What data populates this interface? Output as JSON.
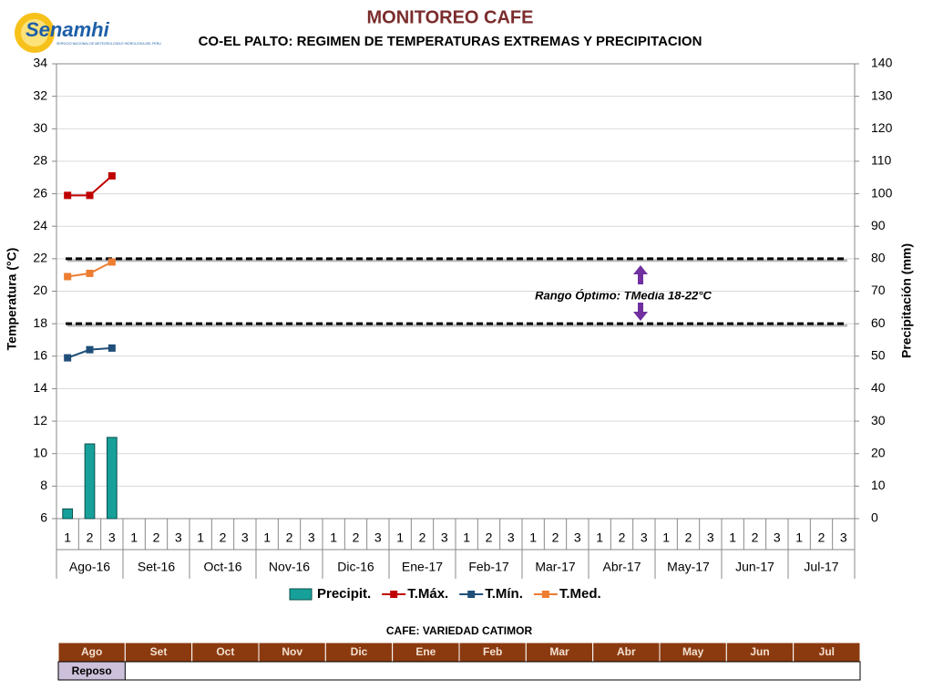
{
  "logo": {
    "name": "Senamhi",
    "tagline": "SERVICIO NACIONAL DE METEOROLOGIA E HIDROLOGIA DEL PERU"
  },
  "chart_data": {
    "type": "bar_line",
    "title": "MONITOREO CAFE",
    "subtitle": "CO-EL PALTO: REGIMEN DE TEMPERATURAS EXTREMAS Y PRECIPITACION",
    "ylabel": "Temperatura (°C)",
    "y2label": "Precipitación (mm)",
    "categories": [
      "1",
      "2",
      "3",
      "1",
      "2",
      "3",
      "1",
      "2",
      "3",
      "1",
      "2",
      "3",
      "1",
      "2",
      "3",
      "1",
      "2",
      "3",
      "1",
      "2",
      "3",
      "1",
      "2",
      "3",
      "1",
      "2",
      "3",
      "1",
      "2",
      "3",
      "1",
      "2",
      "3",
      "1",
      "2",
      "3"
    ],
    "groups": [
      "Ago-16",
      "Set-16",
      "Oct-16",
      "Nov-16",
      "Dic-16",
      "Ene-17",
      "Feb-17",
      "Mar-17",
      "Abr-17",
      "May-17",
      "Jun-17",
      "Jul-17"
    ],
    "series": [
      {
        "name": "Precipit.",
        "type": "bar",
        "axis": "y2",
        "color": "#17a09a",
        "values": [
          3,
          23,
          25,
          null,
          null,
          null,
          null,
          null,
          null,
          null,
          null,
          null,
          null,
          null,
          null,
          null,
          null,
          null,
          null,
          null,
          null,
          null,
          null,
          null,
          null,
          null,
          null,
          null,
          null,
          null,
          null,
          null,
          null,
          null,
          null,
          null
        ]
      },
      {
        "name": "T.Máx.",
        "type": "line",
        "color": "#c00000",
        "values": [
          25.9,
          25.9,
          27.1,
          null,
          null,
          null,
          null,
          null,
          null,
          null,
          null,
          null,
          null,
          null,
          null,
          null,
          null,
          null,
          null,
          null,
          null,
          null,
          null,
          null,
          null,
          null,
          null,
          null,
          null,
          null,
          null,
          null,
          null,
          null,
          null,
          null
        ]
      },
      {
        "name": "T.Mín.",
        "type": "line",
        "color": "#1f4e79",
        "values": [
          15.9,
          16.4,
          16.5,
          null,
          null,
          null,
          null,
          null,
          null,
          null,
          null,
          null,
          null,
          null,
          null,
          null,
          null,
          null,
          null,
          null,
          null,
          null,
          null,
          null,
          null,
          null,
          null,
          null,
          null,
          null,
          null,
          null,
          null,
          null,
          null,
          null
        ]
      },
      {
        "name": "T.Med.",
        "type": "line",
        "color": "#ed7d31",
        "values": [
          20.9,
          21.1,
          21.8,
          null,
          null,
          null,
          null,
          null,
          null,
          null,
          null,
          null,
          null,
          null,
          null,
          null,
          null,
          null,
          null,
          null,
          null,
          null,
          null,
          null,
          null,
          null,
          null,
          null,
          null,
          null,
          null,
          null,
          null,
          null,
          null,
          null
        ]
      }
    ],
    "ylim": [
      6,
      34
    ],
    "yticks": [
      6,
      8,
      10,
      12,
      14,
      16,
      18,
      20,
      22,
      24,
      26,
      28,
      30,
      32,
      34
    ],
    "y2lim": [
      0,
      140
    ],
    "y2ticks": [
      0,
      10,
      20,
      30,
      40,
      50,
      60,
      70,
      80,
      90,
      100,
      110,
      120,
      130,
      140
    ],
    "grid": true,
    "reference_lines": [
      18,
      22
    ],
    "annotation": "Rango Óptimo: TMedia 18-22°C"
  },
  "calendar": {
    "title": "CAFE: VARIEDAD CATIMOR",
    "months": [
      "Ago",
      "Set",
      "Oct",
      "Nov",
      "Dic",
      "Ene",
      "Feb",
      "Mar",
      "Abr",
      "May",
      "Jun",
      "Jul"
    ],
    "phase": "Reposo"
  }
}
